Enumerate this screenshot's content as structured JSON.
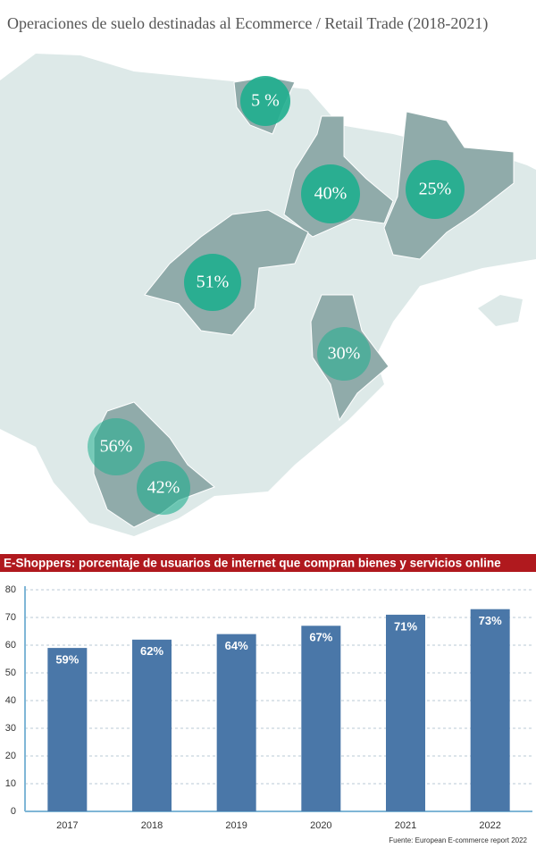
{
  "chart_data": [
    {
      "type": "map",
      "title": "Operaciones de suelo destinadas al Ecommerce / Retail Trade  (2018-2021)",
      "values": [
        5,
        40,
        25,
        51,
        30,
        56,
        42
      ],
      "value_labels": [
        "5 %",
        "40%",
        "25%",
        "51%",
        "30%",
        "56%",
        "42%"
      ],
      "color": "#1fae8e"
    },
    {
      "type": "bar",
      "title": "E-Shoppers: porcentaje de usuarios de internet que compran bienes y servicios online",
      "categories": [
        "2017",
        "2018",
        "2019",
        "2020",
        "2021",
        "2022"
      ],
      "values": [
        59,
        62,
        64,
        67,
        71,
        73
      ],
      "value_labels": [
        "59%",
        "62%",
        "64%",
        "67%",
        "71%",
        "73%"
      ],
      "color": "#4a77a8",
      "ylim": [
        0,
        80
      ],
      "yticks": [
        0,
        10,
        20,
        30,
        40,
        50,
        60,
        70,
        80
      ],
      "grid": true,
      "source": "Fuente: European E-commerce report 2022"
    }
  ]
}
